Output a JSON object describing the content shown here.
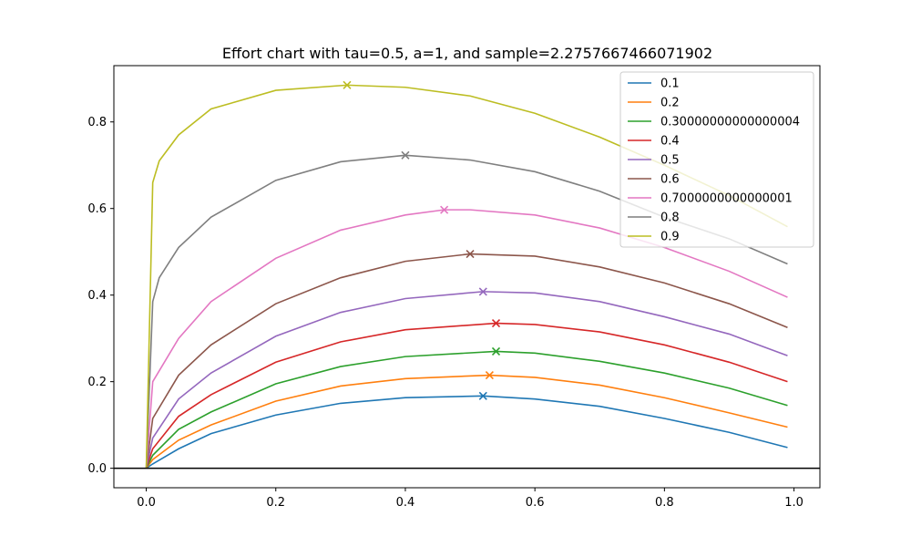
{
  "chart_data": {
    "type": "line",
    "title": "Effort chart with tau=0.5, a=1, and sample=2.2757667466071902",
    "xlabel": "",
    "ylabel": "",
    "xlim": [
      -0.05,
      1.04
    ],
    "ylim": [
      -0.045,
      0.93
    ],
    "xticks": [
      {
        "value": 0.0,
        "label": "0.0"
      },
      {
        "value": 0.2,
        "label": "0.2"
      },
      {
        "value": 0.4,
        "label": "0.4"
      },
      {
        "value": 0.6,
        "label": "0.6"
      },
      {
        "value": 0.8,
        "label": "0.8"
      },
      {
        "value": 1.0,
        "label": "1.0"
      }
    ],
    "yticks": [
      {
        "value": 0.0,
        "label": "0.0"
      },
      {
        "value": 0.2,
        "label": "0.2"
      },
      {
        "value": 0.4,
        "label": "0.4"
      },
      {
        "value": 0.6,
        "label": "0.6"
      },
      {
        "value": 0.8,
        "label": "0.8"
      }
    ],
    "grid": false,
    "legend_position": "top-right",
    "zero_line": true,
    "series": [
      {
        "name": "0.1",
        "color": "#1f77b4",
        "points": [
          [
            0.0,
            0.0
          ],
          [
            0.01,
            0.01
          ],
          [
            0.05,
            0.045
          ],
          [
            0.1,
            0.08
          ],
          [
            0.2,
            0.123
          ],
          [
            0.3,
            0.15
          ],
          [
            0.4,
            0.163
          ],
          [
            0.52,
            0.167
          ],
          [
            0.6,
            0.16
          ],
          [
            0.7,
            0.143
          ],
          [
            0.8,
            0.115
          ],
          [
            0.9,
            0.083
          ],
          [
            0.99,
            0.048
          ]
        ],
        "max": [
          0.52,
          0.167
        ]
      },
      {
        "name": "0.2",
        "color": "#ff7f0e",
        "points": [
          [
            0.0,
            0.0
          ],
          [
            0.01,
            0.02
          ],
          [
            0.05,
            0.065
          ],
          [
            0.1,
            0.1
          ],
          [
            0.2,
            0.155
          ],
          [
            0.3,
            0.19
          ],
          [
            0.4,
            0.207
          ],
          [
            0.53,
            0.215
          ],
          [
            0.6,
            0.21
          ],
          [
            0.7,
            0.192
          ],
          [
            0.8,
            0.163
          ],
          [
            0.9,
            0.128
          ],
          [
            0.99,
            0.095
          ]
        ],
        "max": [
          0.53,
          0.215
        ]
      },
      {
        "name": "0.30000000000000004",
        "color": "#2ca02c",
        "points": [
          [
            0.0,
            0.0
          ],
          [
            0.01,
            0.03
          ],
          [
            0.05,
            0.09
          ],
          [
            0.1,
            0.13
          ],
          [
            0.2,
            0.195
          ],
          [
            0.3,
            0.235
          ],
          [
            0.4,
            0.258
          ],
          [
            0.54,
            0.27
          ],
          [
            0.6,
            0.266
          ],
          [
            0.7,
            0.247
          ],
          [
            0.8,
            0.22
          ],
          [
            0.9,
            0.185
          ],
          [
            0.99,
            0.145
          ]
        ],
        "max": [
          0.54,
          0.27
        ]
      },
      {
        "name": "0.4",
        "color": "#d62728",
        "points": [
          [
            0.0,
            0.0
          ],
          [
            0.01,
            0.045
          ],
          [
            0.05,
            0.12
          ],
          [
            0.1,
            0.17
          ],
          [
            0.2,
            0.245
          ],
          [
            0.3,
            0.292
          ],
          [
            0.4,
            0.32
          ],
          [
            0.54,
            0.335
          ],
          [
            0.6,
            0.332
          ],
          [
            0.7,
            0.315
          ],
          [
            0.8,
            0.285
          ],
          [
            0.9,
            0.245
          ],
          [
            0.99,
            0.2
          ]
        ],
        "max": [
          0.54,
          0.335
        ]
      },
      {
        "name": "0.5",
        "color": "#9467bd",
        "points": [
          [
            0.0,
            0.0
          ],
          [
            0.01,
            0.07
          ],
          [
            0.05,
            0.16
          ],
          [
            0.1,
            0.22
          ],
          [
            0.2,
            0.305
          ],
          [
            0.3,
            0.36
          ],
          [
            0.4,
            0.392
          ],
          [
            0.52,
            0.408
          ],
          [
            0.6,
            0.405
          ],
          [
            0.7,
            0.385
          ],
          [
            0.8,
            0.35
          ],
          [
            0.9,
            0.31
          ],
          [
            0.99,
            0.26
          ]
        ],
        "max": [
          0.52,
          0.408
        ]
      },
      {
        "name": "0.6",
        "color": "#8c564b",
        "points": [
          [
            0.0,
            0.0
          ],
          [
            0.01,
            0.115
          ],
          [
            0.05,
            0.215
          ],
          [
            0.1,
            0.285
          ],
          [
            0.2,
            0.38
          ],
          [
            0.3,
            0.44
          ],
          [
            0.4,
            0.478
          ],
          [
            0.5,
            0.495
          ],
          [
            0.6,
            0.49
          ],
          [
            0.7,
            0.465
          ],
          [
            0.8,
            0.428
          ],
          [
            0.9,
            0.38
          ],
          [
            0.99,
            0.325
          ]
        ],
        "max": [
          0.5,
          0.495
        ]
      },
      {
        "name": "0.7000000000000001",
        "color": "#e377c2",
        "points": [
          [
            0.0,
            0.0
          ],
          [
            0.01,
            0.2
          ],
          [
            0.05,
            0.3
          ],
          [
            0.1,
            0.385
          ],
          [
            0.2,
            0.485
          ],
          [
            0.3,
            0.55
          ],
          [
            0.4,
            0.585
          ],
          [
            0.46,
            0.597
          ],
          [
            0.5,
            0.597
          ],
          [
            0.6,
            0.585
          ],
          [
            0.7,
            0.555
          ],
          [
            0.8,
            0.51
          ],
          [
            0.9,
            0.455
          ],
          [
            0.99,
            0.395
          ]
        ],
        "max": [
          0.46,
          0.597
        ]
      },
      {
        "name": "0.8",
        "color": "#7f7f7f",
        "points": [
          [
            0.0,
            0.0
          ],
          [
            0.01,
            0.385
          ],
          [
            0.02,
            0.44
          ],
          [
            0.05,
            0.51
          ],
          [
            0.1,
            0.58
          ],
          [
            0.2,
            0.665
          ],
          [
            0.3,
            0.708
          ],
          [
            0.4,
            0.723
          ],
          [
            0.5,
            0.712
          ],
          [
            0.6,
            0.685
          ],
          [
            0.7,
            0.64
          ],
          [
            0.8,
            0.58
          ],
          [
            0.9,
            0.53
          ],
          [
            0.99,
            0.472
          ]
        ],
        "max": [
          0.4,
          0.723
        ]
      },
      {
        "name": "0.9",
        "color": "#bcbd22",
        "points": [
          [
            0.0,
            0.0
          ],
          [
            0.01,
            0.66
          ],
          [
            0.02,
            0.71
          ],
          [
            0.05,
            0.77
          ],
          [
            0.1,
            0.83
          ],
          [
            0.2,
            0.873
          ],
          [
            0.31,
            0.885
          ],
          [
            0.4,
            0.88
          ],
          [
            0.5,
            0.86
          ],
          [
            0.6,
            0.82
          ],
          [
            0.7,
            0.765
          ],
          [
            0.8,
            0.7
          ],
          [
            0.9,
            0.63
          ],
          [
            0.99,
            0.558
          ]
        ],
        "max": [
          0.31,
          0.885
        ]
      }
    ]
  }
}
